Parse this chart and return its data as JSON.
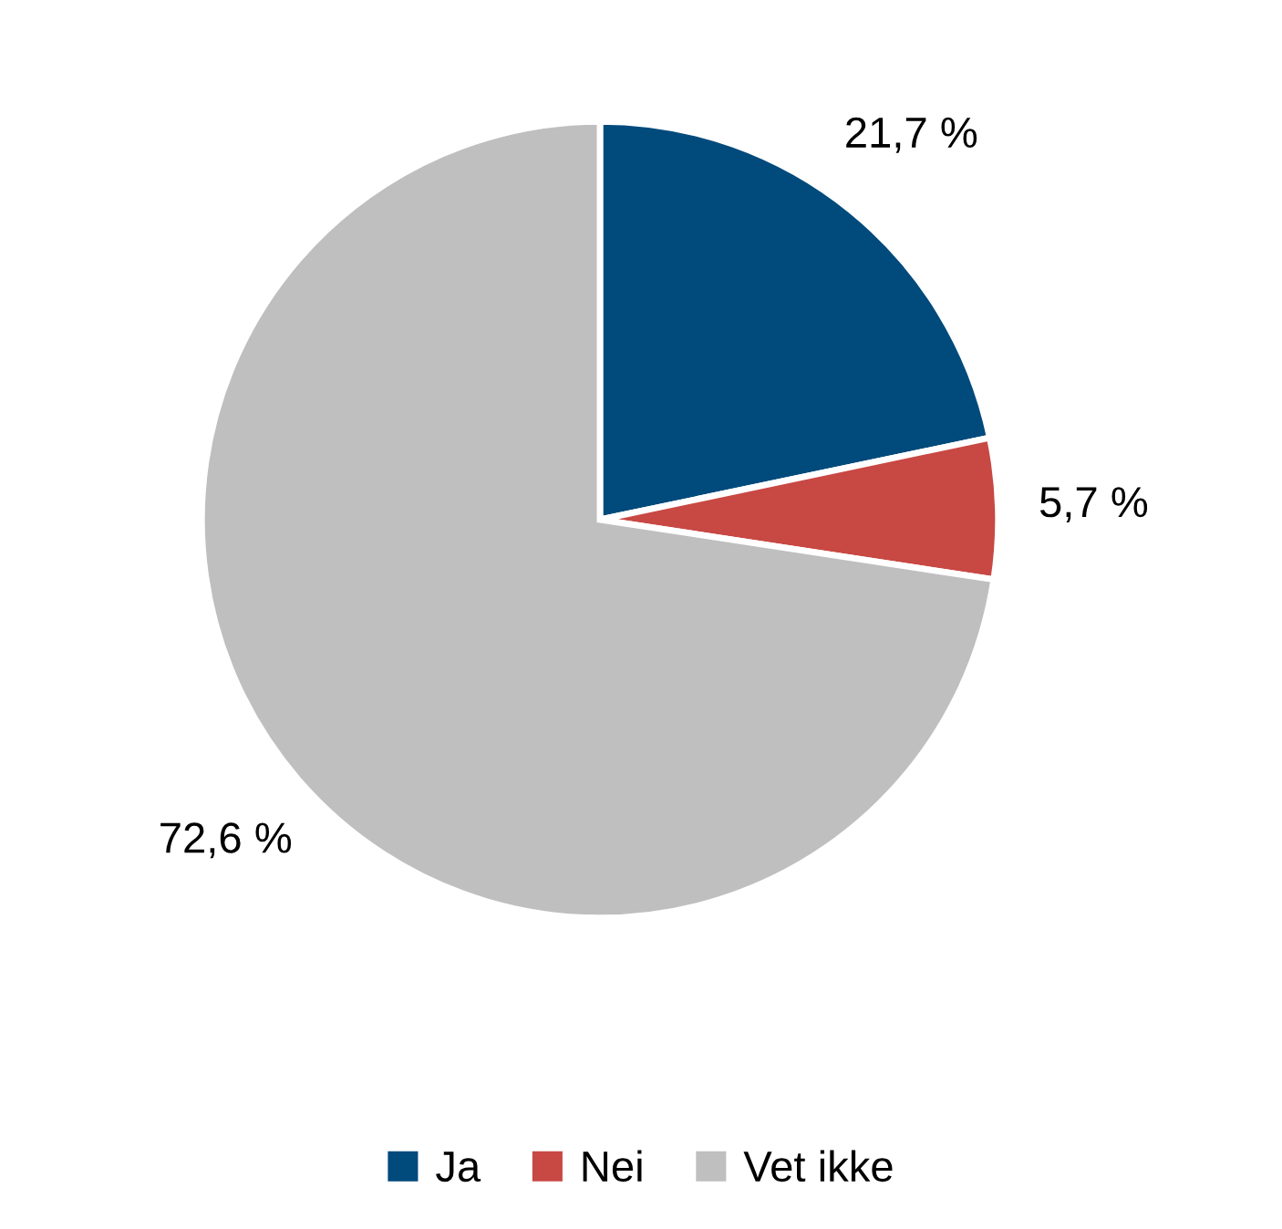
{
  "chart_data": {
    "type": "pie",
    "categories": [
      "Ja",
      "Nei",
      "Vet ikke"
    ],
    "values": [
      21.7,
      5.7,
      72.6
    ],
    "value_labels": [
      "21,7 %",
      "5,7 %",
      "72,6 %"
    ],
    "colors": [
      "#004a7c",
      "#c84844",
      "#bfbfbf"
    ],
    "legend": "bottom"
  }
}
